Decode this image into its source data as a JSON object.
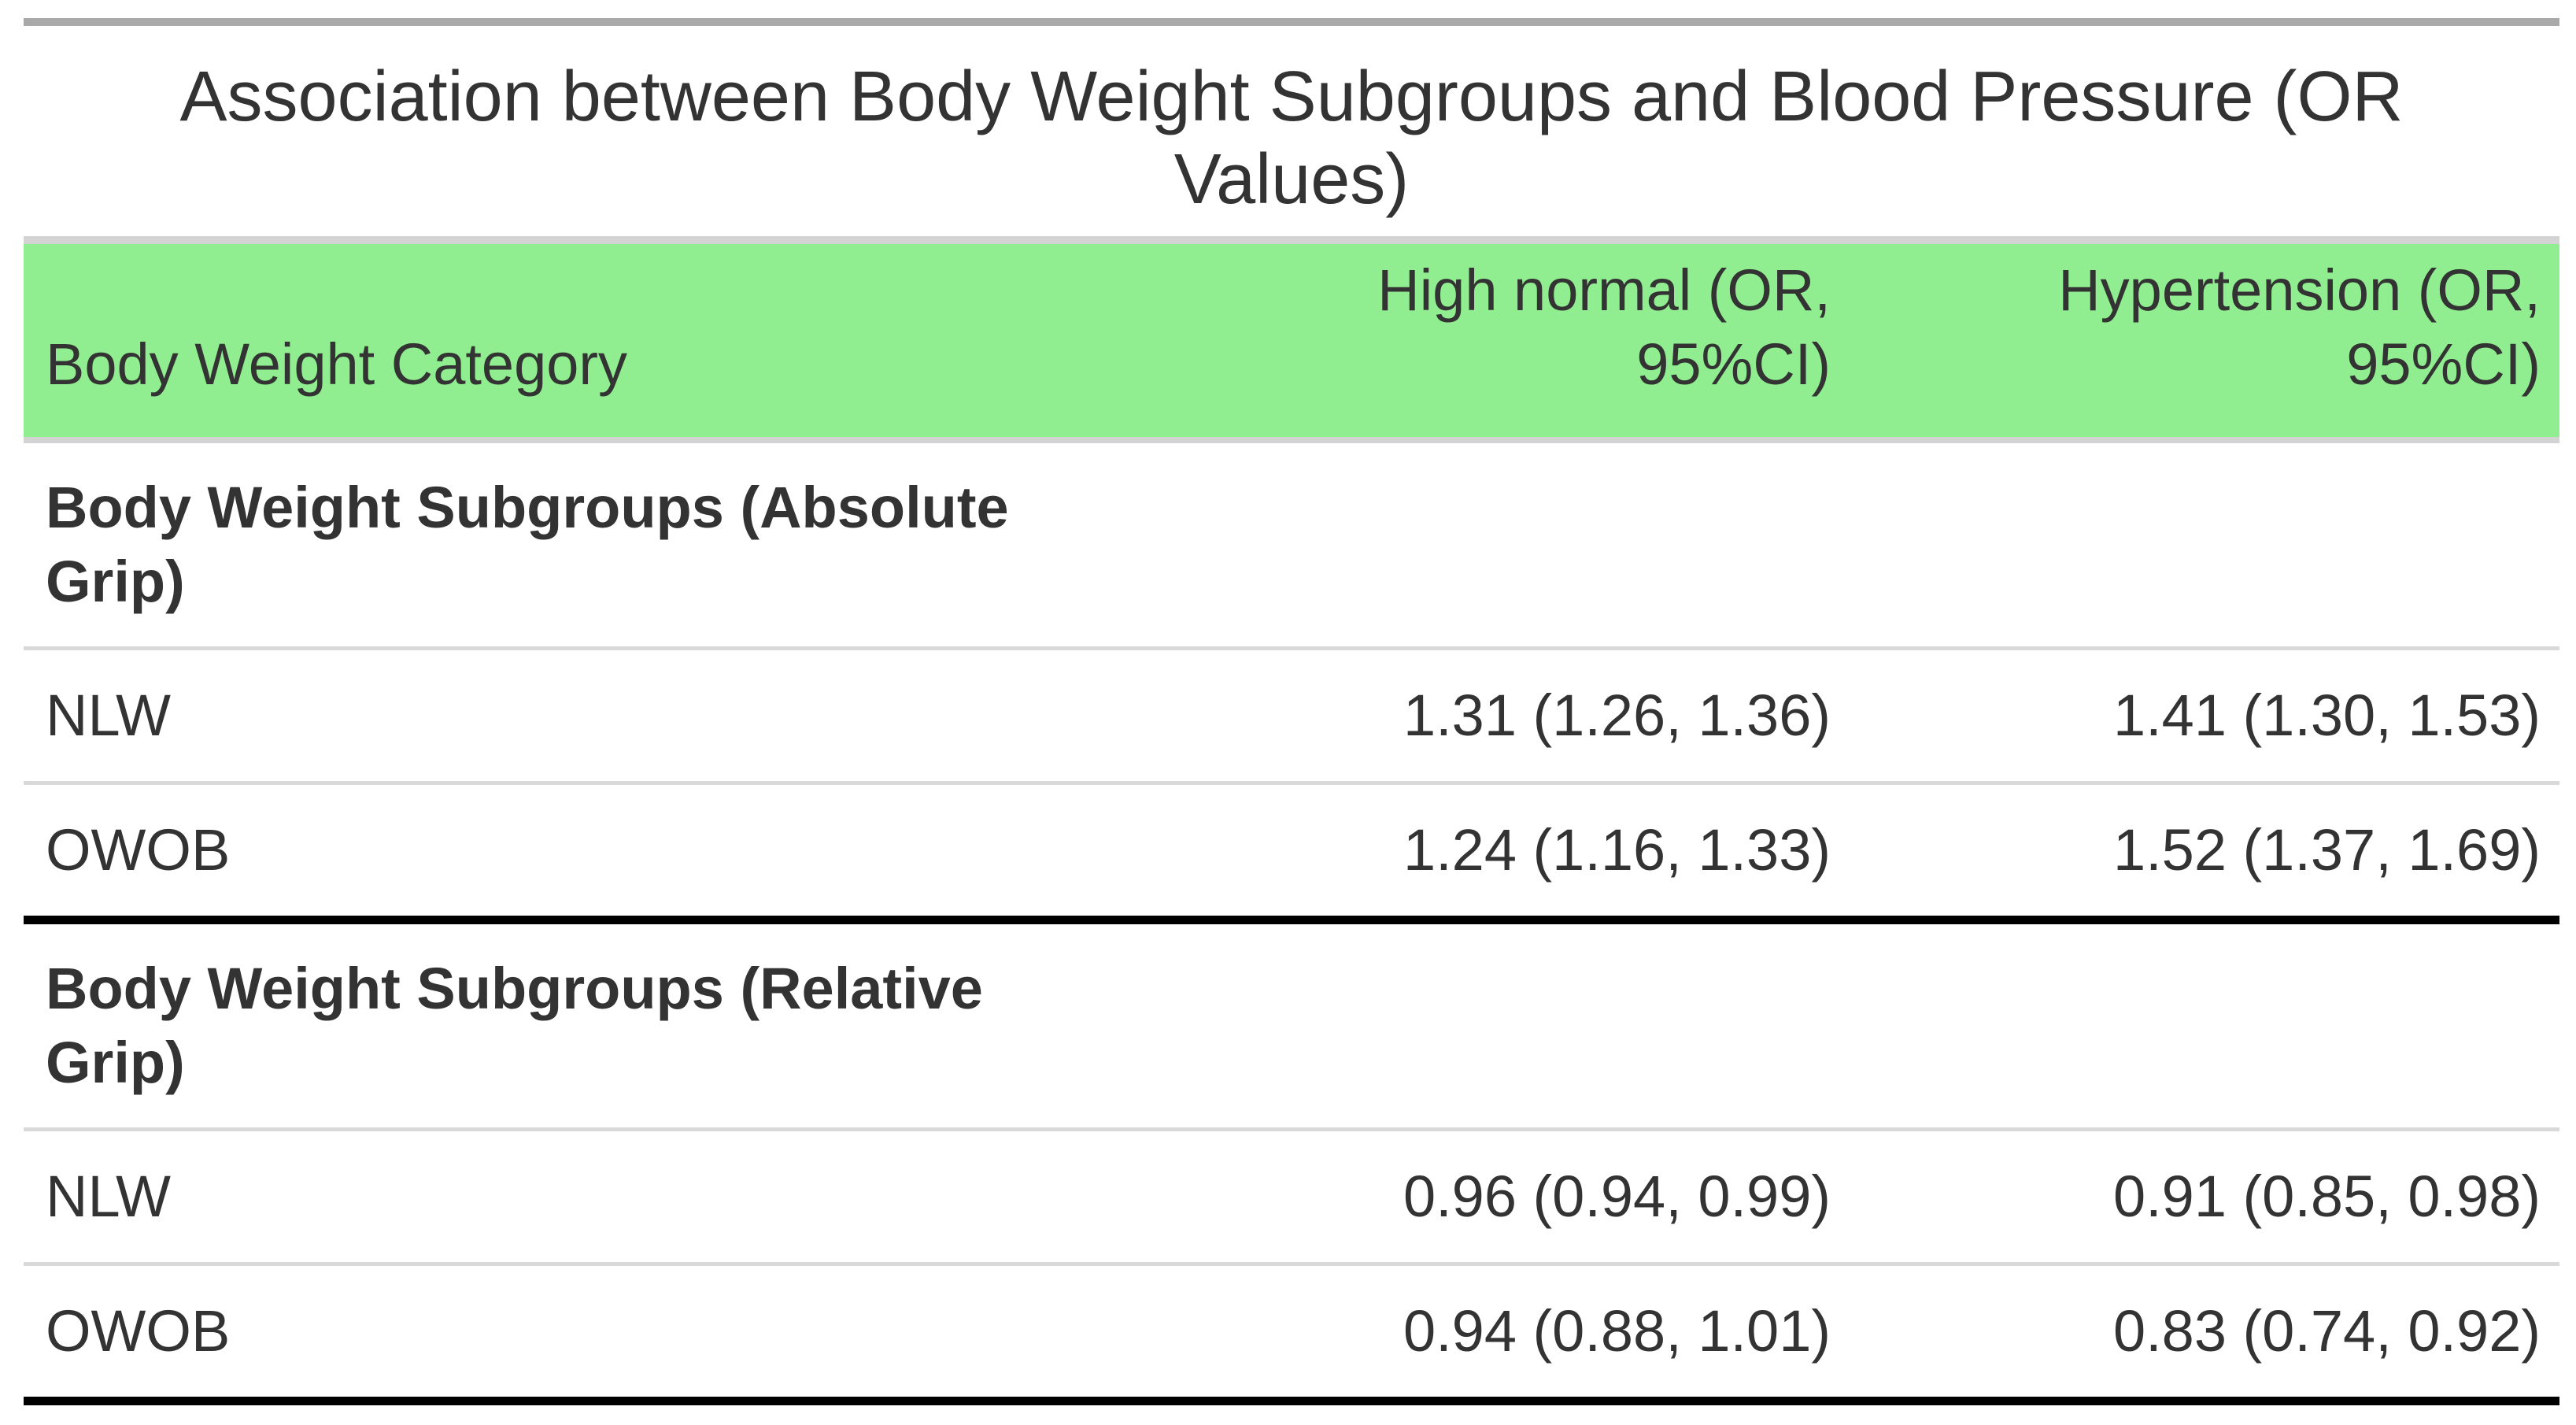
{
  "chart_data": {
    "type": "table",
    "title": "Association between Body Weight Subgroups and Blood Pressure (OR Values)",
    "columns": [
      "Body Weight Category",
      "High normal (OR, 95%CI)",
      "Hypertension (OR, 95%CI)"
    ],
    "sections": [
      {
        "header": "Body Weight Subgroups (Absolute Grip)",
        "rows": [
          {
            "category": "NLW",
            "high_normal": "1.31 (1.26, 1.36)",
            "hypertension": "1.41 (1.30, 1.53)",
            "high_normal_or": 1.31,
            "high_normal_ci": [
              1.26,
              1.36
            ],
            "hypertension_or": 1.41,
            "hypertension_ci": [
              1.3,
              1.53
            ]
          },
          {
            "category": "OWOB",
            "high_normal": "1.24 (1.16, 1.33)",
            "hypertension": "1.52 (1.37, 1.69)",
            "high_normal_or": 1.24,
            "high_normal_ci": [
              1.16,
              1.33
            ],
            "hypertension_or": 1.52,
            "hypertension_ci": [
              1.37,
              1.69
            ]
          }
        ]
      },
      {
        "header": "Body Weight Subgroups (Relative Grip)",
        "rows": [
          {
            "category": "NLW",
            "high_normal": "0.96 (0.94, 0.99)",
            "hypertension": "0.91 (0.85, 0.98)",
            "high_normal_or": 0.96,
            "high_normal_ci": [
              0.94,
              0.99
            ],
            "hypertension_or": 0.91,
            "hypertension_ci": [
              0.85,
              0.98
            ]
          },
          {
            "category": "OWOB",
            "high_normal": "0.94 (0.88, 1.01)",
            "hypertension": "0.83 (0.74, 0.92)",
            "high_normal_or": 0.94,
            "high_normal_ci": [
              0.88,
              1.01
            ],
            "hypertension_or": 0.83,
            "hypertension_ci": [
              0.74,
              0.92
            ]
          }
        ]
      }
    ],
    "layout_hints": {
      "header_alignment": "bottom",
      "value_alignment": "right",
      "grid": "horizontal-only"
    }
  },
  "styles": {
    "header_bg": "#90EE90",
    "top_border": "#A9A9A9",
    "header_frame_line": "#D3D3D3",
    "row_divider": "#D9D9D9",
    "section_divider": "#000000",
    "text": "#333333",
    "background": "#FFFFFF"
  }
}
